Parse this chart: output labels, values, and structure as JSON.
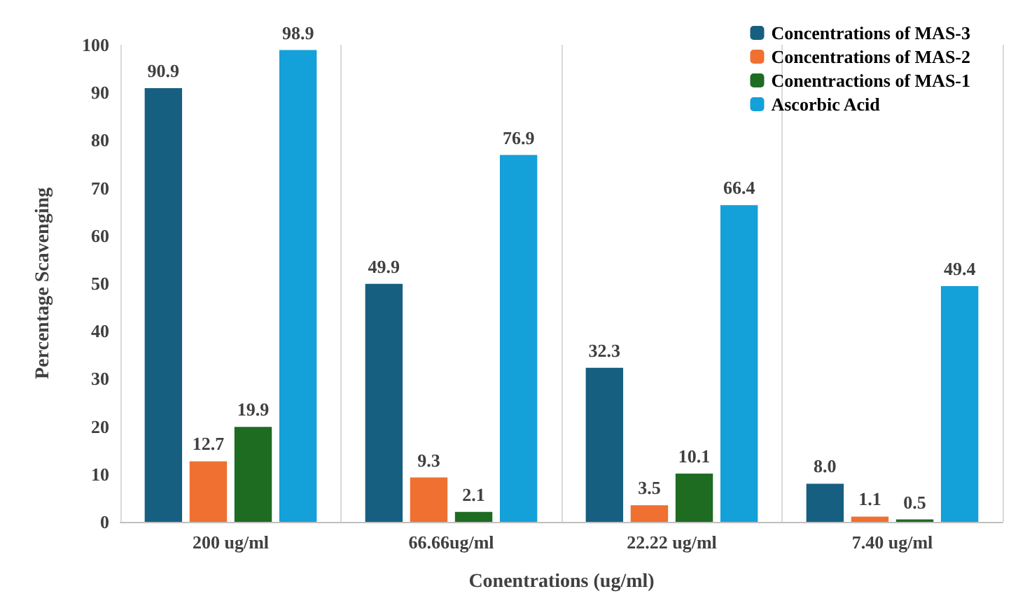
{
  "chart_data": {
    "type": "bar",
    "xlabel": "Conentrations (ug/ml)",
    "ylabel": "Percentage Scavenging",
    "categories": [
      "200 ug/ml",
      "66.66ug/ml",
      "22.22 ug/ml",
      "7.40 ug/ml"
    ],
    "series": [
      {
        "name": "Concentrations of MAS-3",
        "color": "#175f80",
        "values": [
          90.9,
          49.9,
          32.3,
          8.0
        ],
        "value_labels": [
          "90.9",
          "49.9",
          "32.3",
          "8.0"
        ]
      },
      {
        "name": "Concentrations of MAS-2",
        "color": "#ef7030",
        "values": [
          12.7,
          9.3,
          3.5,
          1.1
        ],
        "value_labels": [
          "12.7",
          "9.3",
          "3.5",
          "1.1"
        ]
      },
      {
        "name": "Conentractions of MAS-1",
        "color": "#1e6b22",
        "values": [
          19.9,
          2.1,
          10.1,
          0.5
        ],
        "value_labels": [
          "19.9",
          "2.1",
          "10.1",
          "0.5"
        ]
      },
      {
        "name": "Ascorbic Acid",
        "color": "#14a0d8",
        "values": [
          98.9,
          76.9,
          66.4,
          49.4
        ],
        "value_labels": [
          "98.9",
          "76.9",
          "66.4",
          "49.4"
        ]
      }
    ],
    "ylim": [
      0,
      100
    ],
    "yticks": [
      0,
      10,
      20,
      30,
      40,
      50,
      60,
      70,
      80,
      90,
      100
    ],
    "grid": "x",
    "legend": "top right"
  }
}
